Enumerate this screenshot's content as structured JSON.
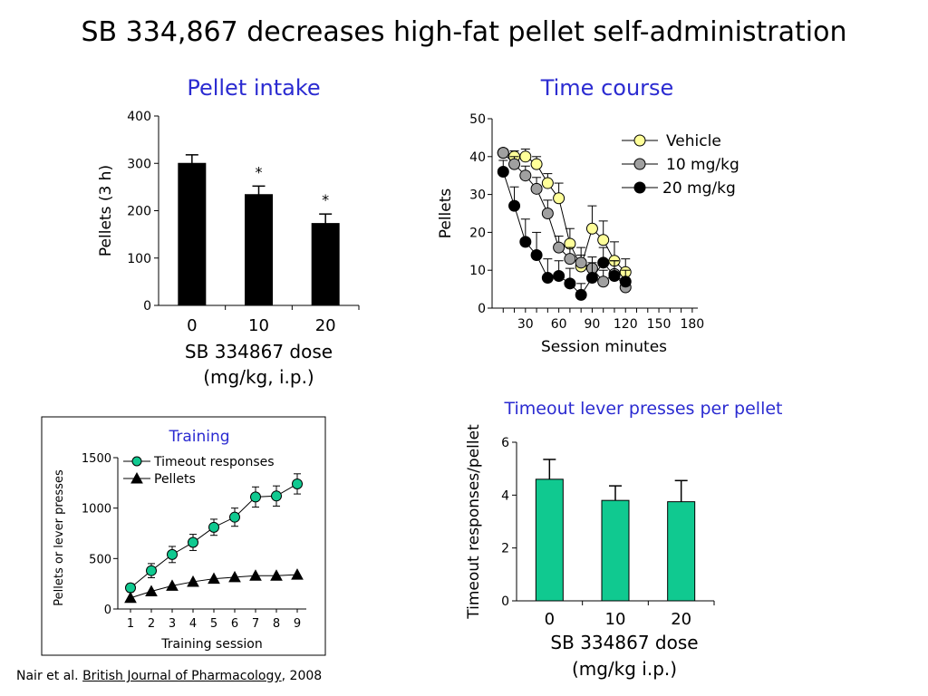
{
  "title": "SB 334,867 decreases high-fat pellet self-administration",
  "citation": {
    "prefix": "Nair et al. ",
    "journal": "British Journal of Pharmacology",
    "suffix": ", 2008"
  },
  "colors": {
    "accent_title": "#2b2bd1",
    "teal": "#10c990",
    "yellow": "#ffff99",
    "gray": "#a0a0a0",
    "black": "#000000"
  },
  "chart_data": [
    {
      "id": "pellet-intake",
      "type": "bar",
      "title": "Pellet intake",
      "categories": [
        "0",
        "10",
        "20"
      ],
      "values": [
        300,
        234,
        173
      ],
      "errors": [
        18,
        18,
        20
      ],
      "significance": [
        "",
        "*",
        "*"
      ],
      "ylabel": "Pellets (3 h)",
      "xlabel_line1": "SB 334867 dose",
      "xlabel_line2": "(mg/kg, i.p.)",
      "yticks": [
        0,
        100,
        200,
        300,
        400
      ],
      "ylim": [
        0,
        400
      ],
      "bar_color": "#000000"
    },
    {
      "id": "time-course",
      "type": "line",
      "title": "Time course",
      "x": [
        10,
        20,
        30,
        40,
        50,
        60,
        70,
        80,
        90,
        100,
        110,
        120,
        130,
        140,
        150,
        160,
        170,
        180
      ],
      "xticks": [
        30,
        60,
        90,
        120,
        150,
        180
      ],
      "xlabel": "Session minutes",
      "ylabel": "Pellets",
      "yticks": [
        0,
        10,
        20,
        30,
        40,
        50
      ],
      "ylim": [
        0,
        50
      ],
      "xlim": [
        0,
        185
      ],
      "series": [
        {
          "name": "Vehicle",
          "color": "#ffff99",
          "x": [
            10,
            20,
            30,
            40,
            50,
            60,
            70,
            80,
            90,
            100,
            110,
            120
          ],
          "values": [
            41,
            40,
            40,
            38,
            33,
            29,
            17,
            11,
            21,
            18,
            12.5,
            9.5
          ],
          "errors": [
            1,
            1.5,
            2,
            2,
            2.5,
            4,
            4,
            3,
            6,
            5,
            5,
            3.5
          ]
        },
        {
          "name": "10 mg/kg",
          "color": "#a0a0a0",
          "x": [
            10,
            20,
            30,
            40,
            50,
            60,
            70,
            80,
            90,
            100,
            110,
            120
          ],
          "values": [
            41,
            38,
            35,
            31.5,
            25,
            16,
            13,
            12,
            10.5,
            7,
            9,
            5.5
          ],
          "errors": [
            1,
            2,
            2.5,
            3,
            3.5,
            3,
            3,
            4,
            3,
            3,
            3.5,
            2
          ]
        },
        {
          "name": "20 mg/kg",
          "color": "#000000",
          "x": [
            10,
            20,
            30,
            40,
            50,
            60,
            70,
            80,
            90,
            100,
            110,
            120
          ],
          "values": [
            36,
            27,
            17.5,
            14,
            8,
            8.5,
            6.5,
            3.5,
            8,
            12,
            8.5,
            7
          ],
          "errors": [
            3,
            5,
            6,
            6,
            5,
            4,
            4,
            3,
            4,
            4,
            4,
            3
          ]
        }
      ],
      "legend": "top-right"
    },
    {
      "id": "training",
      "type": "line",
      "title": "Training",
      "x": [
        1,
        2,
        3,
        4,
        5,
        6,
        7,
        8,
        9
      ],
      "xticks": [
        1,
        2,
        3,
        4,
        5,
        6,
        7,
        8,
        9
      ],
      "xlabel": "Training session",
      "ylabel": "Pellets or lever presses",
      "yticks": [
        0,
        500,
        1000,
        1500
      ],
      "ylim": [
        0,
        1500
      ],
      "series": [
        {
          "name": "Timeout responses",
          "marker": "circle",
          "color": "#10c990",
          "values": [
            210,
            380,
            540,
            660,
            810,
            910,
            1110,
            1120,
            1240
          ],
          "errors": [
            40,
            70,
            80,
            80,
            80,
            90,
            100,
            100,
            100
          ]
        },
        {
          "name": "Pellets",
          "marker": "triangle",
          "color": "#000000",
          "values": [
            110,
            175,
            230,
            270,
            300,
            315,
            330,
            330,
            340
          ],
          "errors": [
            0,
            0,
            0,
            0,
            0,
            0,
            0,
            0,
            0
          ]
        }
      ],
      "legend": "top-left"
    },
    {
      "id": "timeout-presses",
      "type": "bar",
      "title": "Timeout lever presses per pellet",
      "categories": [
        "0",
        "10",
        "20"
      ],
      "values": [
        4.6,
        3.8,
        3.75
      ],
      "errors": [
        0.75,
        0.55,
        0.8
      ],
      "ylabel": "Timeout responses/pellet",
      "xlabel_line1": "SB 334867 dose",
      "xlabel_line2": "(mg/kg i.p.)",
      "yticks": [
        0,
        2,
        4,
        6
      ],
      "ylim": [
        0,
        6
      ],
      "bar_color": "#10c990"
    }
  ]
}
